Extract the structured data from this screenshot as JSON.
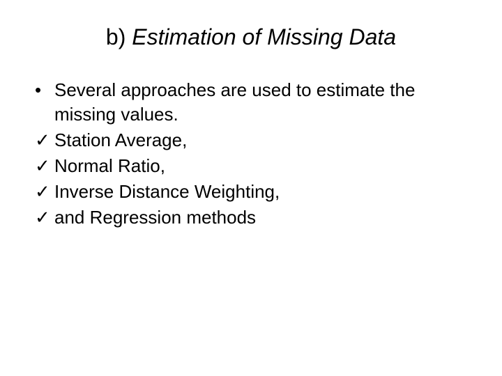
{
  "title": {
    "prefix": "b) ",
    "main": "Estimation of Missing Data"
  },
  "bullet": {
    "marker": "•",
    "text": "Several approaches are used to estimate the missing values."
  },
  "checks": [
    {
      "marker": "✓",
      "text": "Station Average,"
    },
    {
      "marker": "✓",
      "text": "Normal Ratio,"
    },
    {
      "marker": "✓",
      "text": "Inverse Distance Weighting,"
    },
    {
      "marker": "✓",
      "text": "and Regression methods"
    }
  ],
  "styles": {
    "background_color": "#ffffff",
    "text_color": "#000000",
    "title_fontsize": 32,
    "body_fontsize": 26,
    "font_family": "Arial",
    "title_style": "italic"
  }
}
